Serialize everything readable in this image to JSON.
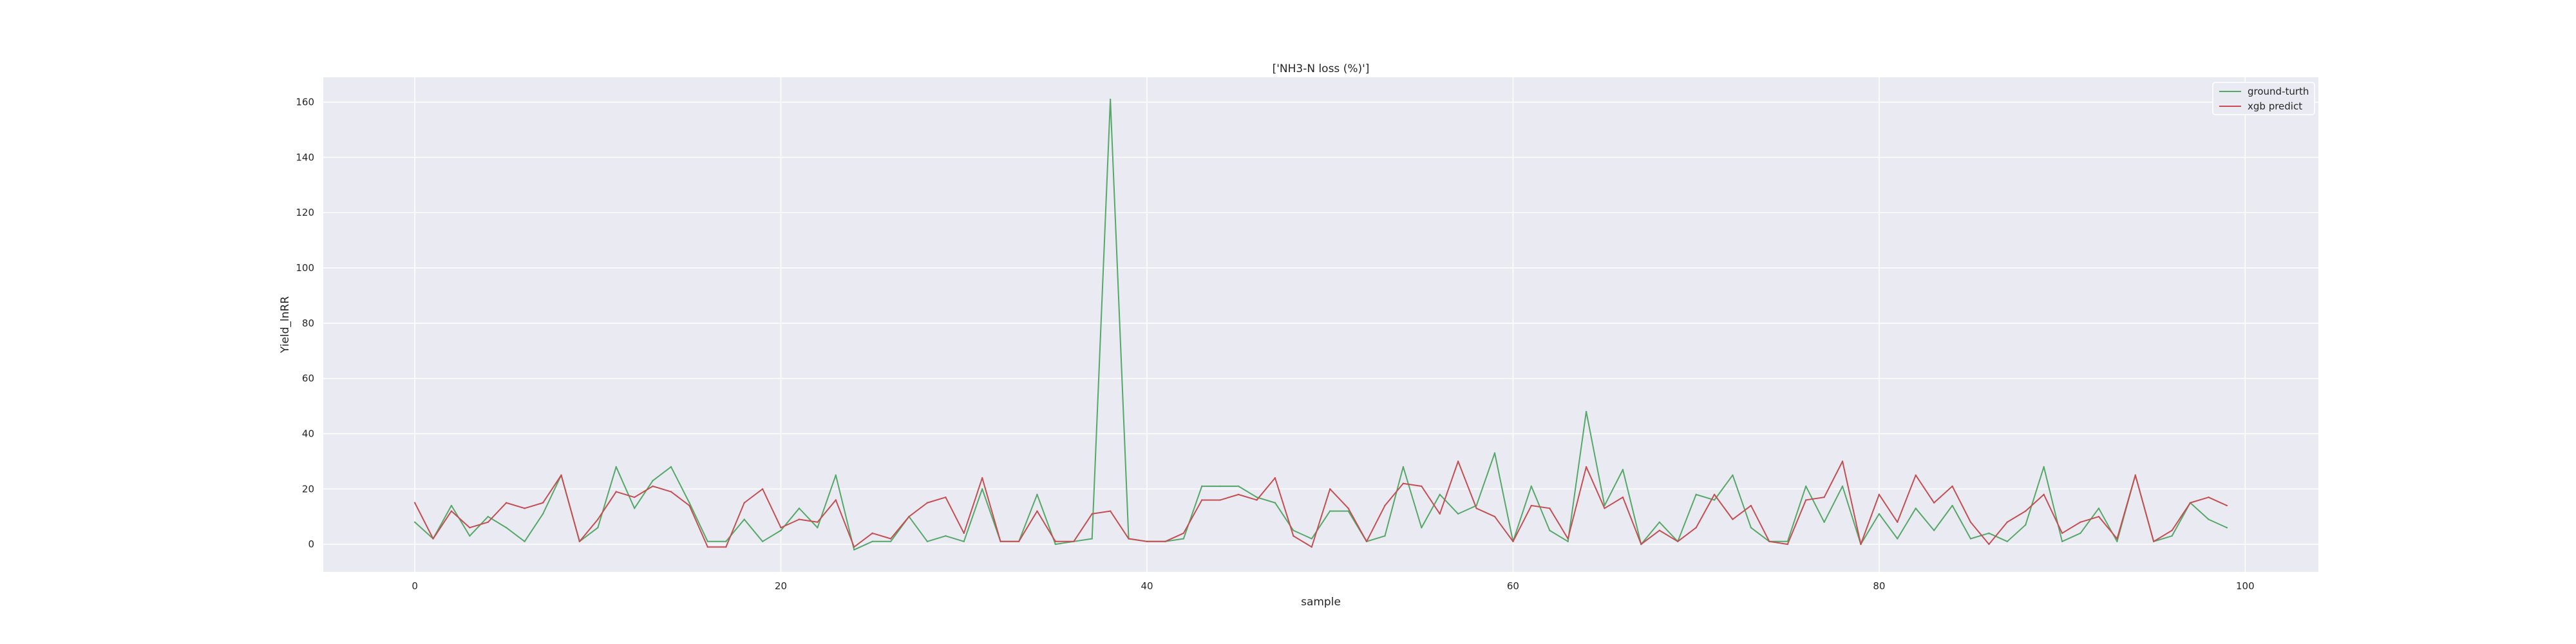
{
  "chart_data": {
    "type": "line",
    "title": "['NH3-N loss (%)']",
    "xlabel": "sample",
    "ylabel": "Yield_lnRR",
    "xlim": [
      -5,
      104
    ],
    "ylim": [
      -10,
      169
    ],
    "x_ticks": [
      0,
      20,
      40,
      60,
      80,
      100
    ],
    "y_ticks": [
      0,
      20,
      40,
      60,
      80,
      100,
      120,
      140,
      160
    ],
    "grid": true,
    "legend_position": "top-right",
    "x": [
      0,
      1,
      2,
      3,
      4,
      5,
      6,
      7,
      8,
      9,
      10,
      11,
      12,
      13,
      14,
      15,
      16,
      17,
      18,
      19,
      20,
      21,
      22,
      23,
      24,
      25,
      26,
      27,
      28,
      29,
      30,
      31,
      32,
      33,
      34,
      35,
      36,
      37,
      38,
      39,
      40,
      41,
      42,
      43,
      44,
      45,
      46,
      47,
      48,
      49,
      50,
      51,
      52,
      53,
      54,
      55,
      56,
      57,
      58,
      59,
      60,
      61,
      62,
      63,
      64,
      65,
      66,
      67,
      68,
      69,
      70,
      71,
      72,
      73,
      74,
      75,
      76,
      77,
      78,
      79,
      80,
      81,
      82,
      83,
      84,
      85,
      86,
      87,
      88,
      89,
      90,
      91,
      92,
      93,
      94,
      95,
      96,
      97,
      98,
      99
    ],
    "series": [
      {
        "name": "ground-turth",
        "color": "#55a868",
        "values": [
          8,
          2,
          14,
          3,
          10,
          6,
          1,
          11,
          25,
          1,
          6,
          28,
          13,
          23,
          28,
          15,
          1,
          1,
          9,
          1,
          5,
          13,
          6,
          25,
          -2,
          1,
          1,
          10,
          1,
          3,
          1,
          20,
          1,
          1,
          18,
          0,
          1,
          2,
          161,
          2,
          1,
          1,
          2,
          21,
          21,
          21,
          17,
          15,
          5,
          2,
          12,
          12,
          1,
          3,
          28,
          6,
          18,
          11,
          14,
          33,
          1,
          21,
          5,
          1,
          48,
          14,
          27,
          0,
          8,
          1,
          18,
          16,
          25,
          6,
          1,
          1,
          21,
          8,
          21,
          0,
          11,
          2,
          13,
          5,
          14,
          2,
          4,
          1,
          7,
          28,
          1,
          4,
          13,
          1,
          25,
          1,
          3,
          15,
          9,
          6
        ]
      },
      {
        "name": "xgb predict",
        "color": "#c44e52",
        "values": [
          15,
          2,
          12,
          6,
          8,
          15,
          13,
          15,
          25,
          1,
          9,
          19,
          17,
          21,
          19,
          14,
          -1,
          -1,
          15,
          20,
          6,
          9,
          8,
          16,
          -1,
          4,
          2,
          10,
          15,
          17,
          4,
          24,
          1,
          1,
          12,
          1,
          1,
          11,
          12,
          2,
          1,
          1,
          4,
          16,
          16,
          18,
          16,
          24,
          3,
          -1,
          20,
          13,
          1,
          14,
          22,
          21,
          11,
          30,
          13,
          10,
          1,
          14,
          13,
          2,
          28,
          13,
          17,
          0,
          5,
          1,
          6,
          18,
          9,
          14,
          1,
          0,
          16,
          17,
          30,
          0,
          18,
          8,
          25,
          15,
          21,
          8,
          0,
          8,
          12,
          18,
          4,
          8,
          10,
          2,
          25,
          1,
          5,
          15,
          17,
          14
        ]
      }
    ]
  }
}
